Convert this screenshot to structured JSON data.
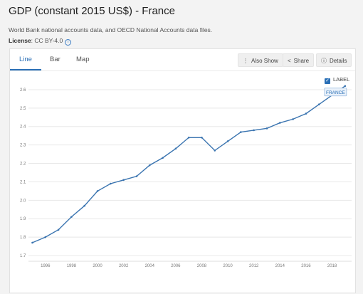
{
  "header": {
    "title": "GDP (constant 2015 US$) - France",
    "subtitle": "World Bank national accounts data, and OECD National Accounts data files.",
    "license_label": "License",
    "license_value": ": CC BY-4.0"
  },
  "tabs": [
    {
      "label": "Line"
    },
    {
      "label": "Bar"
    },
    {
      "label": "Map"
    }
  ],
  "toolbar": {
    "also_show": "Also Show",
    "share": "Share",
    "details": "Details"
  },
  "label_toggle": {
    "label": "LABEL",
    "checked": true
  },
  "colors": {
    "accent": "#2a6fb6",
    "line": "#3a74b0",
    "grid": "#e8e8e8"
  },
  "chart_data": {
    "type": "line",
    "ylim": [
      1.7,
      2.65
    ],
    "xlim": [
      1994.7,
      2019.5
    ],
    "yticks": [
      1.7,
      1.8,
      1.9,
      2.0,
      2.1,
      2.2,
      2.3,
      2.4,
      2.5,
      2.6
    ],
    "ytick_labels": [
      "1.7",
      "1.8",
      "1.9",
      "2.0",
      "2.1",
      "2.2",
      "2.3",
      "2.4",
      "2.5",
      "2.6"
    ],
    "xticks": [
      1996,
      1998,
      2000,
      2002,
      2004,
      2006,
      2008,
      2010,
      2012,
      2014,
      2016,
      2018
    ],
    "xtick_labels": [
      "1996",
      "1998",
      "2000",
      "2002",
      "2004",
      "2006",
      "2008",
      "2010",
      "2012",
      "2014",
      "2016",
      "2018"
    ],
    "grid": true,
    "series": [
      {
        "name": "FRANCE",
        "x": [
          1995,
          1996,
          1997,
          1998,
          1999,
          2000,
          2001,
          2002,
          2003,
          2004,
          2005,
          2006,
          2007,
          2008,
          2009,
          2010,
          2011,
          2012,
          2013,
          2014,
          2015,
          2016,
          2017,
          2018,
          2019
        ],
        "values": [
          1.77,
          1.8,
          1.84,
          1.91,
          1.97,
          2.05,
          2.09,
          2.11,
          2.13,
          2.19,
          2.23,
          2.28,
          2.34,
          2.34,
          2.27,
          2.32,
          2.37,
          2.38,
          2.39,
          2.42,
          2.44,
          2.47,
          2.52,
          2.57,
          2.62
        ]
      }
    ]
  }
}
